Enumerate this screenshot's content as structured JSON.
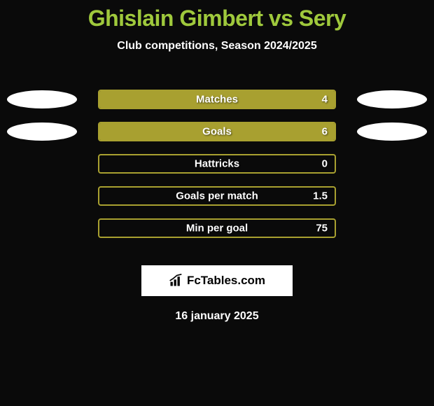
{
  "title": "Ghislain Gimbert vs Sery",
  "subtitle": "Club competitions, Season 2024/2025",
  "accent_color": "#9fc93c",
  "bar_color": "#a8a030",
  "background_color": "#0a0a0a",
  "text_color": "#ffffff",
  "ellipse_color": "#ffffff",
  "title_fontsize": 32,
  "subtitle_fontsize": 16,
  "label_fontsize": 15,
  "rows": [
    {
      "label": "Matches",
      "value": "4",
      "fill_pct": 100,
      "left_ellipse": true,
      "right_ellipse": true
    },
    {
      "label": "Goals",
      "value": "6",
      "fill_pct": 100,
      "left_ellipse": true,
      "right_ellipse": true
    },
    {
      "label": "Hattricks",
      "value": "0",
      "fill_pct": 0,
      "left_ellipse": false,
      "right_ellipse": false
    },
    {
      "label": "Goals per match",
      "value": "1.5",
      "fill_pct": 0,
      "left_ellipse": false,
      "right_ellipse": false
    },
    {
      "label": "Min per goal",
      "value": "75",
      "fill_pct": 0,
      "left_ellipse": false,
      "right_ellipse": false
    }
  ],
  "logo_text": "FcTables.com",
  "date": "16 january 2025"
}
